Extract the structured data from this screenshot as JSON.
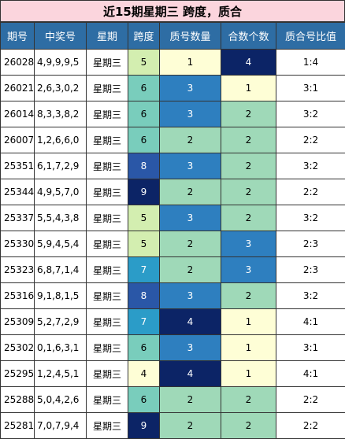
{
  "title": "近15期星期三 跨度，质合",
  "headers": [
    "期号",
    "中奖号",
    "星期",
    "跨度",
    "质号数量",
    "合数个数",
    "质合号比值"
  ],
  "colors": {
    "header_bg": "#2e6da4",
    "title_bg": "#fbd5dd",
    "span": {
      "4": "#fefed6",
      "5": "#d3eeb0",
      "6": "#79cdbc",
      "7": "#2b9cc8",
      "8": "#2a57a7",
      "9": "#0c2466"
    },
    "count": {
      "1": "#fefed6",
      "2": "#9fd9b8",
      "3": "#2e7fbf",
      "4": "#0c2466"
    }
  },
  "rows": [
    {
      "issue": "26028",
      "numbers": "4,9,9,9,5",
      "weekday": "星期三",
      "span": "5",
      "prime": "1",
      "composite": "4",
      "ratio": "1:4"
    },
    {
      "issue": "26021",
      "numbers": "2,6,3,0,2",
      "weekday": "星期三",
      "span": "6",
      "prime": "3",
      "composite": "1",
      "ratio": "3:1"
    },
    {
      "issue": "26014",
      "numbers": "8,3,3,8,2",
      "weekday": "星期三",
      "span": "6",
      "prime": "3",
      "composite": "2",
      "ratio": "3:2"
    },
    {
      "issue": "26007",
      "numbers": "1,2,6,6,0",
      "weekday": "星期三",
      "span": "6",
      "prime": "2",
      "composite": "2",
      "ratio": "2:2"
    },
    {
      "issue": "25351",
      "numbers": "6,1,7,2,9",
      "weekday": "星期三",
      "span": "8",
      "prime": "3",
      "composite": "2",
      "ratio": "3:2"
    },
    {
      "issue": "25344",
      "numbers": "4,9,5,7,0",
      "weekday": "星期三",
      "span": "9",
      "prime": "2",
      "composite": "2",
      "ratio": "2:2"
    },
    {
      "issue": "25337",
      "numbers": "5,5,4,3,8",
      "weekday": "星期三",
      "span": "5",
      "prime": "3",
      "composite": "2",
      "ratio": "3:2"
    },
    {
      "issue": "25330",
      "numbers": "5,9,4,5,4",
      "weekday": "星期三",
      "span": "5",
      "prime": "2",
      "composite": "3",
      "ratio": "2:3"
    },
    {
      "issue": "25323",
      "numbers": "6,8,7,1,4",
      "weekday": "星期三",
      "span": "7",
      "prime": "2",
      "composite": "3",
      "ratio": "2:3"
    },
    {
      "issue": "25316",
      "numbers": "9,1,8,1,5",
      "weekday": "星期三",
      "span": "8",
      "prime": "3",
      "composite": "2",
      "ratio": "3:2"
    },
    {
      "issue": "25309",
      "numbers": "5,2,7,2,9",
      "weekday": "星期三",
      "span": "7",
      "prime": "4",
      "composite": "1",
      "ratio": "4:1"
    },
    {
      "issue": "25302",
      "numbers": "0,1,6,3,1",
      "weekday": "星期三",
      "span": "6",
      "prime": "3",
      "composite": "1",
      "ratio": "3:1"
    },
    {
      "issue": "25295",
      "numbers": "1,2,4,5,1",
      "weekday": "星期三",
      "span": "4",
      "prime": "4",
      "composite": "1",
      "ratio": "4:1"
    },
    {
      "issue": "25288",
      "numbers": "5,0,4,2,6",
      "weekday": "星期三",
      "span": "6",
      "prime": "2",
      "composite": "2",
      "ratio": "2:2"
    },
    {
      "issue": "25281",
      "numbers": "7,0,7,9,4",
      "weekday": "星期三",
      "span": "9",
      "prime": "2",
      "composite": "2",
      "ratio": "2:2"
    }
  ]
}
